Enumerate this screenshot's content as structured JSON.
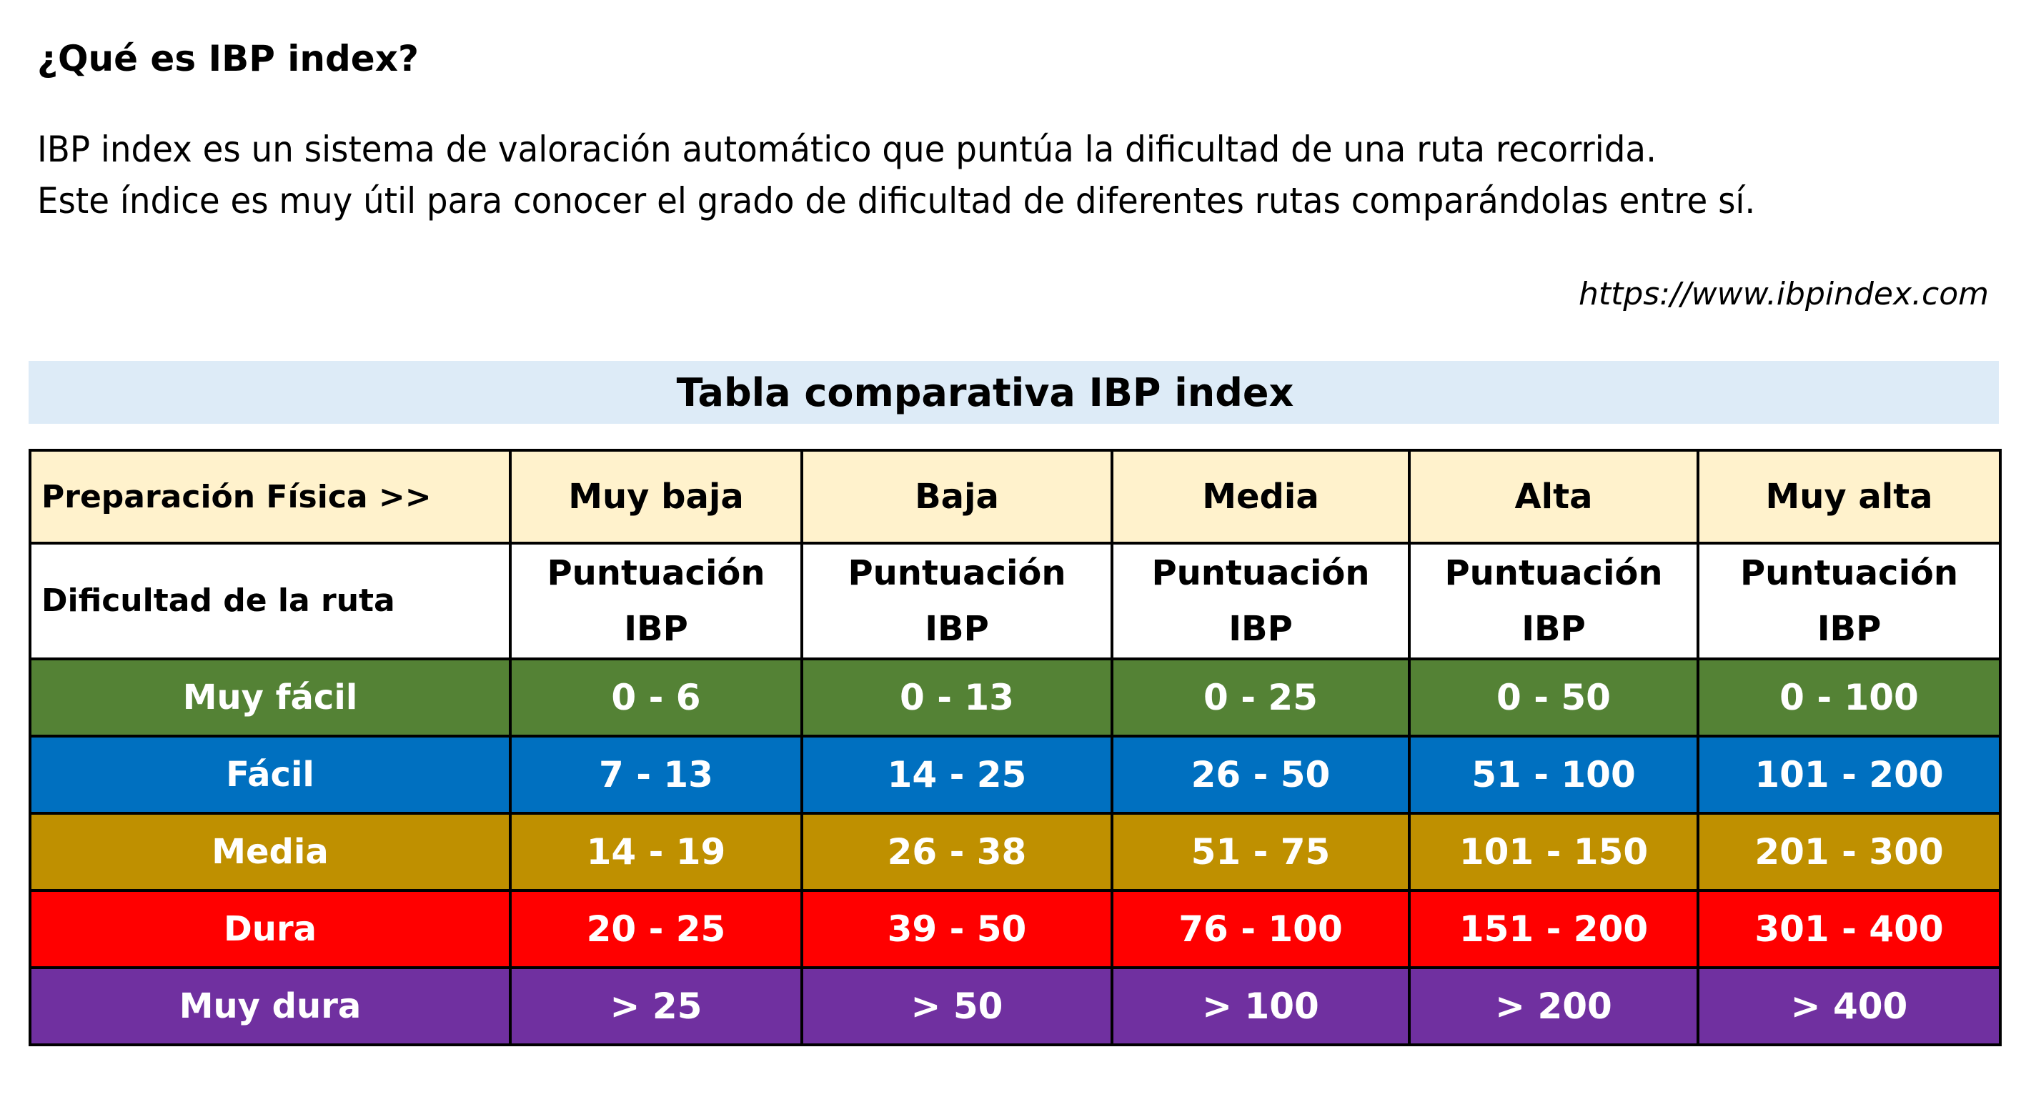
{
  "heading": "¿Qué es IBP index?",
  "paragraph": [
    "IBP index es un sistema de valoración automático que puntúa la dificultad de una ruta recorrida.",
    "Este índice es muy útil para conocer el grado de dificultad de diferentes rutas comparándolas entre sí."
  ],
  "source_url": "https://www.ibpindex.com",
  "table_title": "Tabla comparativa IBP index",
  "table": {
    "prep_label": "Preparación Física >>",
    "prep_levels": [
      "Muy baja",
      "Baja",
      "Media",
      "Alta",
      "Muy alta"
    ],
    "difficulty_label": "Dificultad de la ruta",
    "score_header_line1": "Puntuación",
    "score_header_line2": "IBP",
    "rows": [
      {
        "label": "Muy fácil",
        "color": "#548235",
        "values": [
          "0 - 6",
          "0 - 13",
          "0 - 25",
          "0 - 50",
          "0 - 100"
        ]
      },
      {
        "label": "Fácil",
        "color": "#0070c0",
        "values": [
          "7 - 13",
          "14 - 25",
          "26 - 50",
          "51 - 100",
          "101 - 200"
        ]
      },
      {
        "label": "Media",
        "color": "#bf9000",
        "values": [
          "14 - 19",
          "26 - 38",
          "51 - 75",
          "101 - 150",
          "201 - 300"
        ]
      },
      {
        "label": "Dura",
        "color": "#ff0000",
        "values": [
          "20 - 25",
          "39 - 50",
          "76 - 100",
          "151 - 200",
          "301 - 400"
        ]
      },
      {
        "label": "Muy dura",
        "color": "#7030a0",
        "values": [
          "> 25",
          "> 50",
          "> 100",
          "> 200",
          "> 400"
        ]
      }
    ]
  }
}
